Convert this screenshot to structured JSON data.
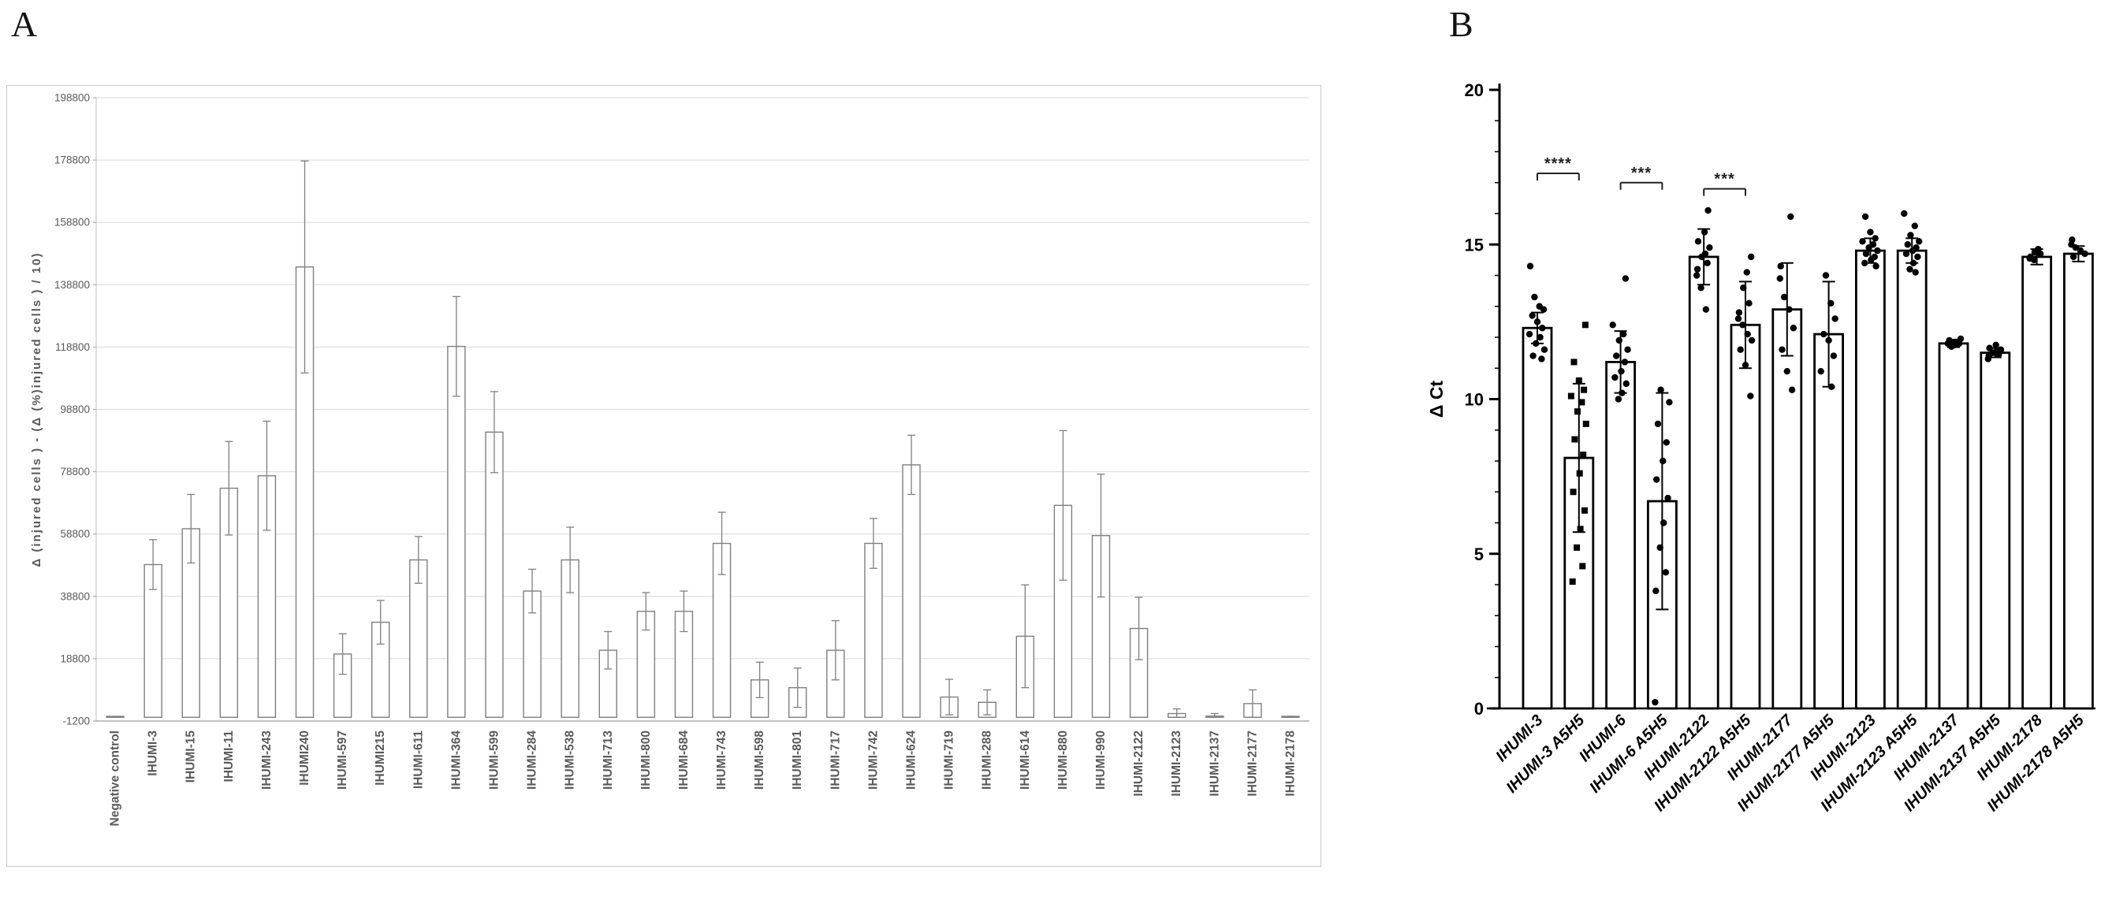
{
  "panels": {
    "a": {
      "label": "A"
    },
    "b": {
      "label": "B"
    }
  },
  "colors": {
    "a_text": "#595959",
    "a_grid": "#d9d9d9",
    "a_bar_stroke": "#7f7f7f",
    "a_frame_border": "#c9c9c9",
    "b_ink": "#000000"
  },
  "chart_data": [
    {
      "id": "panel-a",
      "type": "bar",
      "title": "",
      "xlabel": "",
      "ylabel": "Δ (injured cells ) - (Δ (%)injured cells ) / 10)",
      "ylim": [
        -1200,
        198800
      ],
      "yticks": [
        -1200,
        18800,
        38800,
        58800,
        78800,
        98800,
        118800,
        138800,
        158800,
        178800,
        198800
      ],
      "grid": true,
      "legend_position": "none",
      "categories": [
        "Negative control",
        "IHUMI-3",
        "IHUMI-15",
        "IHUMI-11",
        "IHUMI-243",
        "IHUMI240",
        "IHUMI-597",
        "IHUMI215",
        "IHUMI-611",
        "IHUMI-364",
        "IHUMI-599",
        "IHUMI-284",
        "IHUMI-538",
        "IHUMI-713",
        "IHUMI-800",
        "IHUMI-684",
        "IHUMI-743",
        "IHUMI-598",
        "IHUMI-801",
        "IHUMI-717",
        "IHUMI-742",
        "IHUMI-624",
        "IHUMI-719",
        "IHUMI-288",
        "IHUMI-614",
        "IHUMI-880",
        "IHUMI-990",
        "IHUMI-2122",
        "IHUMI-2123",
        "IHUMI-2137",
        "IHUMI-2177",
        "IHUMI-2178"
      ],
      "values": [
        0,
        49000,
        60500,
        73500,
        77500,
        144500,
        20300,
        30500,
        50500,
        119000,
        91500,
        40500,
        50500,
        21500,
        34000,
        34000,
        55800,
        12000,
        9500,
        21500,
        55800,
        81000,
        6500,
        4800,
        26000,
        68000,
        58300,
        28500,
        1200,
        400,
        4400,
        0
      ],
      "errors": [
        0,
        8000,
        11000,
        15000,
        17500,
        34000,
        6500,
        7000,
        7500,
        16000,
        13000,
        7000,
        10500,
        6000,
        6000,
        6500,
        10000,
        5700,
        6300,
        9500,
        8000,
        9500,
        5700,
        4000,
        16500,
        24000,
        19700,
        10000,
        1500,
        800,
        4400,
        300
      ]
    },
    {
      "id": "panel-b",
      "type": "bar-scatter",
      "title": "",
      "xlabel": "",
      "ylabel": "Δ Ct",
      "ylim": [
        0,
        20
      ],
      "yticks": [
        0,
        5,
        10,
        15,
        20
      ],
      "minor_tick_step": 1,
      "grid": false,
      "legend_position": "none",
      "categories": [
        "IHUMI-3",
        "IHUMI-3 A5H5",
        "IHUMI-6",
        "IHUMI-6 A5H5",
        "IHUMI-2122",
        "IHUMI-2122 A5H5",
        "IHUMI-2177",
        "IHUMI-2177 A5H5",
        "IHUMI-2123",
        "IHUMI-2123 A5H5",
        "IHUMI-2137",
        "IHUMI-2137 A5H5",
        "IHUMI-2178",
        "IHUMI-2178 A5H5"
      ],
      "values": [
        12.3,
        8.1,
        11.2,
        6.7,
        14.6,
        12.4,
        12.9,
        12.1,
        14.8,
        14.8,
        11.8,
        11.5,
        14.6,
        14.7
      ],
      "errors": [
        0.5,
        2.4,
        1.0,
        3.5,
        0.9,
        1.4,
        1.5,
        1.7,
        0.4,
        0.4,
        0.12,
        0.15,
        0.25,
        0.25
      ],
      "markers": [
        "circle",
        "square",
        "circle",
        "circle",
        "circle",
        "circle",
        "circle",
        "circle",
        "circle",
        "circle",
        "circle",
        "circle",
        "circle",
        "circle"
      ],
      "points": [
        [
          14.3,
          13.3,
          13.0,
          12.9,
          12.7,
          12.5,
          12.3,
          12.1,
          12.0,
          11.8,
          11.6,
          11.4,
          11.3
        ],
        [
          12.4,
          11.2,
          10.6,
          10.3,
          10.1,
          9.9,
          9.6,
          9.2,
          8.7,
          8.2,
          7.6,
          7.0,
          6.4,
          5.8,
          5.2,
          4.6,
          4.1
        ],
        [
          13.9,
          12.4,
          12.1,
          11.9,
          11.6,
          11.4,
          11.2,
          10.9,
          10.7,
          10.5,
          10.2,
          10.0
        ],
        [
          10.3,
          9.9,
          9.2,
          8.6,
          8.0,
          7.4,
          6.8,
          6.0,
          5.2,
          4.4,
          3.8,
          0.2
        ],
        [
          16.1,
          15.4,
          15.1,
          14.9,
          14.7,
          14.6,
          14.4,
          14.2,
          14.0,
          13.6,
          12.9
        ],
        [
          14.6,
          14.1,
          13.6,
          13.1,
          12.8,
          12.6,
          12.4,
          12.1,
          11.9,
          11.6,
          11.1,
          10.1
        ],
        [
          15.9,
          14.3,
          13.9,
          13.3,
          12.9,
          12.3,
          11.6,
          10.9,
          10.3
        ],
        [
          14.0,
          13.1,
          12.6,
          12.1,
          11.9,
          11.4,
          10.9,
          10.4
        ],
        [
          15.9,
          15.4,
          15.2,
          15.1,
          15.0,
          14.9,
          14.8,
          14.7,
          14.6,
          14.5,
          14.4,
          14.3
        ],
        [
          16.0,
          15.6,
          15.3,
          15.1,
          15.0,
          14.9,
          14.8,
          14.7,
          14.6,
          14.4,
          14.2,
          14.1
        ],
        [
          11.95,
          11.9,
          11.85,
          11.85,
          11.8,
          11.8,
          11.75,
          11.7
        ],
        [
          11.75,
          11.65,
          11.6,
          11.55,
          11.5,
          11.45,
          11.4,
          11.3
        ],
        [
          14.85,
          14.75,
          14.7,
          14.6,
          14.55,
          14.5
        ],
        [
          15.15,
          15.0,
          14.9,
          14.8,
          14.7,
          14.6
        ]
      ],
      "significance": [
        {
          "pair": [
            0,
            1
          ],
          "label": "****",
          "y": 17.3
        },
        {
          "pair": [
            2,
            3
          ],
          "label": "***",
          "y": 17.0
        },
        {
          "pair": [
            4,
            5
          ],
          "label": "***",
          "y": 16.8
        }
      ]
    }
  ]
}
